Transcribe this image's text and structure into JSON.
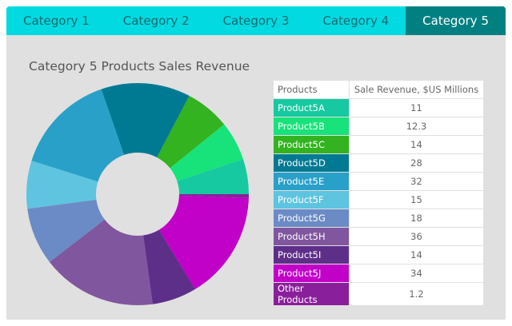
{
  "tabs": [
    "Category 1",
    "Category 2",
    "Category 3",
    "Category 4",
    "Category 5"
  ],
  "active_tab": 4,
  "colors": {
    "tab_bar": "#00dae0",
    "tab_active": "#008080",
    "panel": "#e0e0e0"
  },
  "chart_data": {
    "type": "pie",
    "donut": true,
    "title": "Category 5 Products Sales Revenue",
    "table_headers": [
      "Products",
      "Sale Revenue, $US Millions"
    ],
    "categories": [
      "Product5A",
      "Product5B",
      "Product5C",
      "Product5D",
      "Product5E",
      "Product5F",
      "Product5G",
      "Product5H",
      "Product5I",
      "Product5J",
      "Other Products"
    ],
    "values": [
      11,
      12.3,
      14,
      28,
      32,
      15,
      18,
      36,
      14,
      34,
      1.2
    ],
    "value_labels": [
      "11",
      "12.3",
      "14",
      "28",
      "32",
      "15",
      "18",
      "36",
      "14",
      "34",
      "1.2"
    ],
    "colors": [
      "#17c9a0",
      "#17e37a",
      "#32b31f",
      "#007a93",
      "#29a0c8",
      "#5ec4e0",
      "#6b8bc6",
      "#80569e",
      "#5e2f88",
      "#c100c8",
      "#8a1f9c"
    ]
  }
}
